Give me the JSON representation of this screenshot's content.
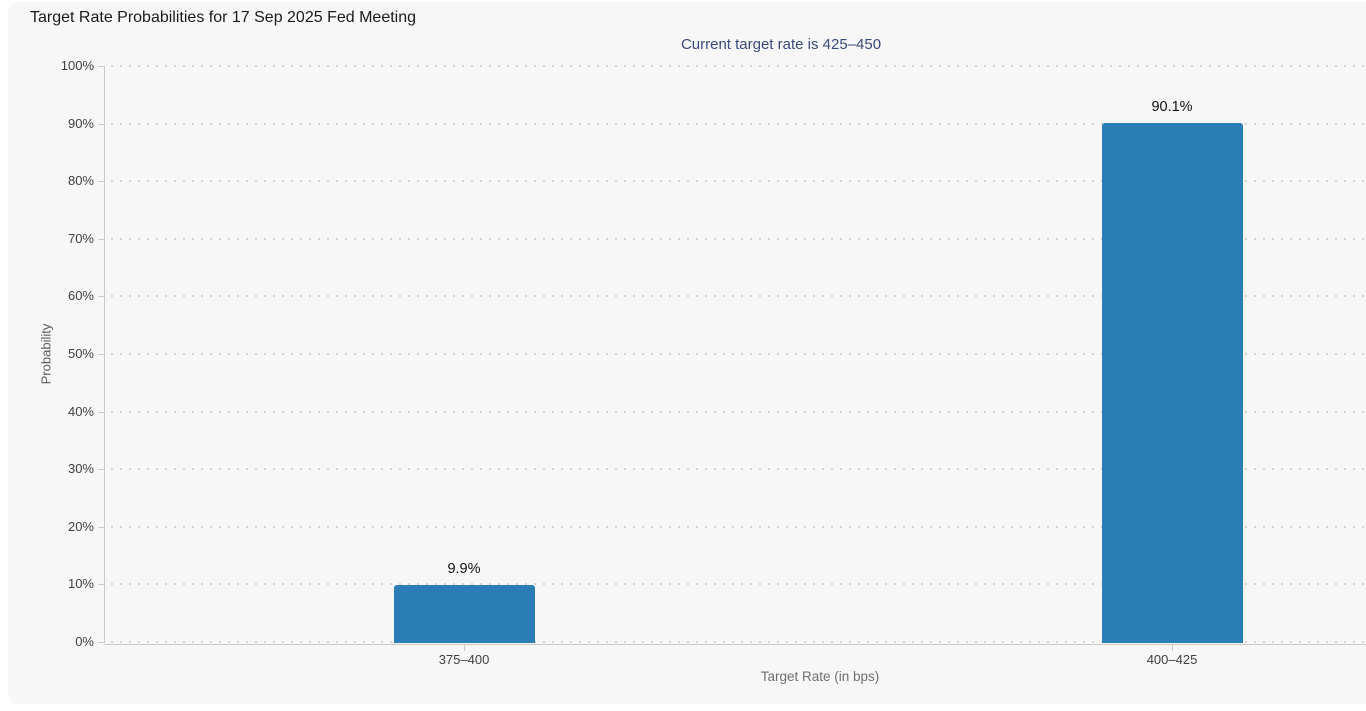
{
  "chart_data": {
    "type": "bar",
    "title": "Target Rate Probabilities for 17 Sep 2025 Fed Meeting",
    "subtitle": "Current target rate is 425–450",
    "xlabel": "Target Rate (in bps)",
    "ylabel": "Probability",
    "categories": [
      "375–400",
      "400–425"
    ],
    "values": [
      9.9,
      90.1
    ],
    "value_labels": [
      "9.9%",
      "90.1%"
    ],
    "ylim": [
      0,
      100
    ],
    "ytick_step": 10,
    "ytick_labels": [
      "0%",
      "10%",
      "20%",
      "30%",
      "40%",
      "50%",
      "60%",
      "70%",
      "80%",
      "90%",
      "100%"
    ],
    "grid": "dotted horizontal, on",
    "legend": "none",
    "bar_color": "#2b7db6",
    "subtitle_color": "#3a4a7c",
    "panel_background": "#f7f7f7",
    "axis_line_color": "#c9c9c9"
  }
}
